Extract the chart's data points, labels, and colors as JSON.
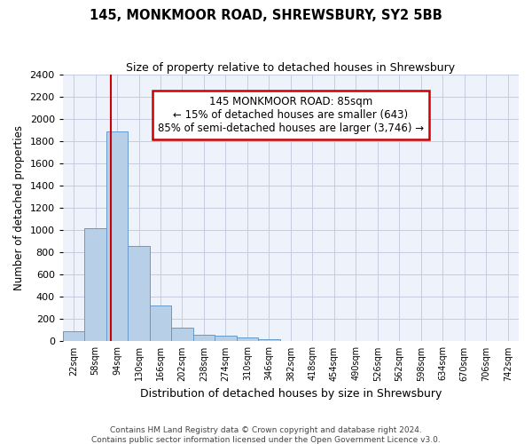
{
  "title": "145, MONKMOOR ROAD, SHREWSBURY, SY2 5BB",
  "subtitle": "Size of property relative to detached houses in Shrewsbury",
  "xlabel": "Distribution of detached houses by size in Shrewsbury",
  "ylabel": "Number of detached properties",
  "footnote1": "Contains HM Land Registry data © Crown copyright and database right 2024.",
  "footnote2": "Contains public sector information licensed under the Open Government Licence v3.0.",
  "bin_labels": [
    "22sqm",
    "58sqm",
    "94sqm",
    "130sqm",
    "166sqm",
    "202sqm",
    "238sqm",
    "274sqm",
    "310sqm",
    "346sqm",
    "382sqm",
    "418sqm",
    "454sqm",
    "490sqm",
    "526sqm",
    "562sqm",
    "598sqm",
    "634sqm",
    "670sqm",
    "706sqm",
    "742sqm"
  ],
  "bar_values": [
    90,
    1020,
    1890,
    860,
    320,
    120,
    60,
    50,
    35,
    20,
    0,
    0,
    0,
    0,
    0,
    0,
    0,
    0,
    0,
    0,
    0
  ],
  "bar_color": "#b8cfe8",
  "bar_edge_color": "#6699cc",
  "ylim": [
    0,
    2400
  ],
  "yticks": [
    0,
    200,
    400,
    600,
    800,
    1000,
    1200,
    1400,
    1600,
    1800,
    2000,
    2200,
    2400
  ],
  "vline_x": 1.72,
  "vline_color": "#cc0000",
  "annotation_title": "145 MONKMOOR ROAD: 85sqm",
  "annotation_line1": "← 15% of detached houses are smaller (643)",
  "annotation_line2": "85% of semi-detached houses are larger (3,746) →",
  "annotation_box_color": "#cc0000",
  "bg_color": "#eef2fa",
  "grid_color": "#c5cce0"
}
